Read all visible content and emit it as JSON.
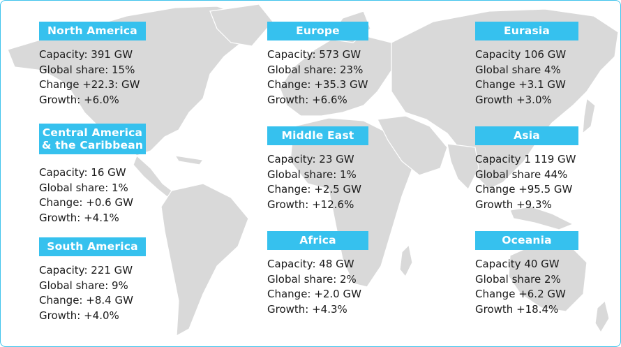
{
  "colors": {
    "accent": "#36c1ee",
    "land": "#d9d9d9",
    "text": "#1a1a1a"
  },
  "regions": {
    "north_america": {
      "name": "North America",
      "capacity": "Capacity: 391 GW",
      "share": "Global share: 15%",
      "change": "Change +22.3: GW",
      "growth": "Growth: +6.0%"
    },
    "central_america": {
      "name_line1": "Central America",
      "name_line2": "& the Caribbean",
      "capacity": "Capacity: 16 GW",
      "share": "Global share: 1%",
      "change": "Change: +0.6 GW",
      "growth": "Growth: +4.1%"
    },
    "south_america": {
      "name": "South America",
      "capacity": "Capacity: 221 GW",
      "share": "Global share: 9%",
      "change": "Change: +8.4 GW",
      "growth": "Growth: +4.0%"
    },
    "europe": {
      "name": "Europe",
      "capacity": "Capacity: 573 GW",
      "share": "Global share: 23%",
      "change": "Change: +35.3 GW",
      "growth": "Growth: +6.6%"
    },
    "middle_east": {
      "name": "Middle East",
      "capacity": "Capacity: 23 GW",
      "share": "Global share: 1%",
      "change": "Change: +2.5 GW",
      "growth": "Growth: +12.6%"
    },
    "africa": {
      "name": "Africa",
      "capacity": "Capacity: 48 GW",
      "share": "Global share: 2%",
      "change": "Change: +2.0 GW",
      "growth": "Growth: +4.3%"
    },
    "eurasia": {
      "name": "Eurasia",
      "capacity": "Capacity 106 GW",
      "share": "Global share 4%",
      "change": "Change +3.1 GW",
      "growth": "Growth +3.0%"
    },
    "asia": {
      "name": "Asia",
      "capacity": "Capacity 1 119 GW",
      "share": "Global share 44%",
      "change": "Change +95.5 GW",
      "growth": "Growth +9.3%"
    },
    "oceania": {
      "name": "Oceania",
      "capacity": "Capacity 40 GW",
      "share": "Global share 2%",
      "change": "Change +6.2 GW",
      "growth": "Growth +18.4%"
    }
  }
}
